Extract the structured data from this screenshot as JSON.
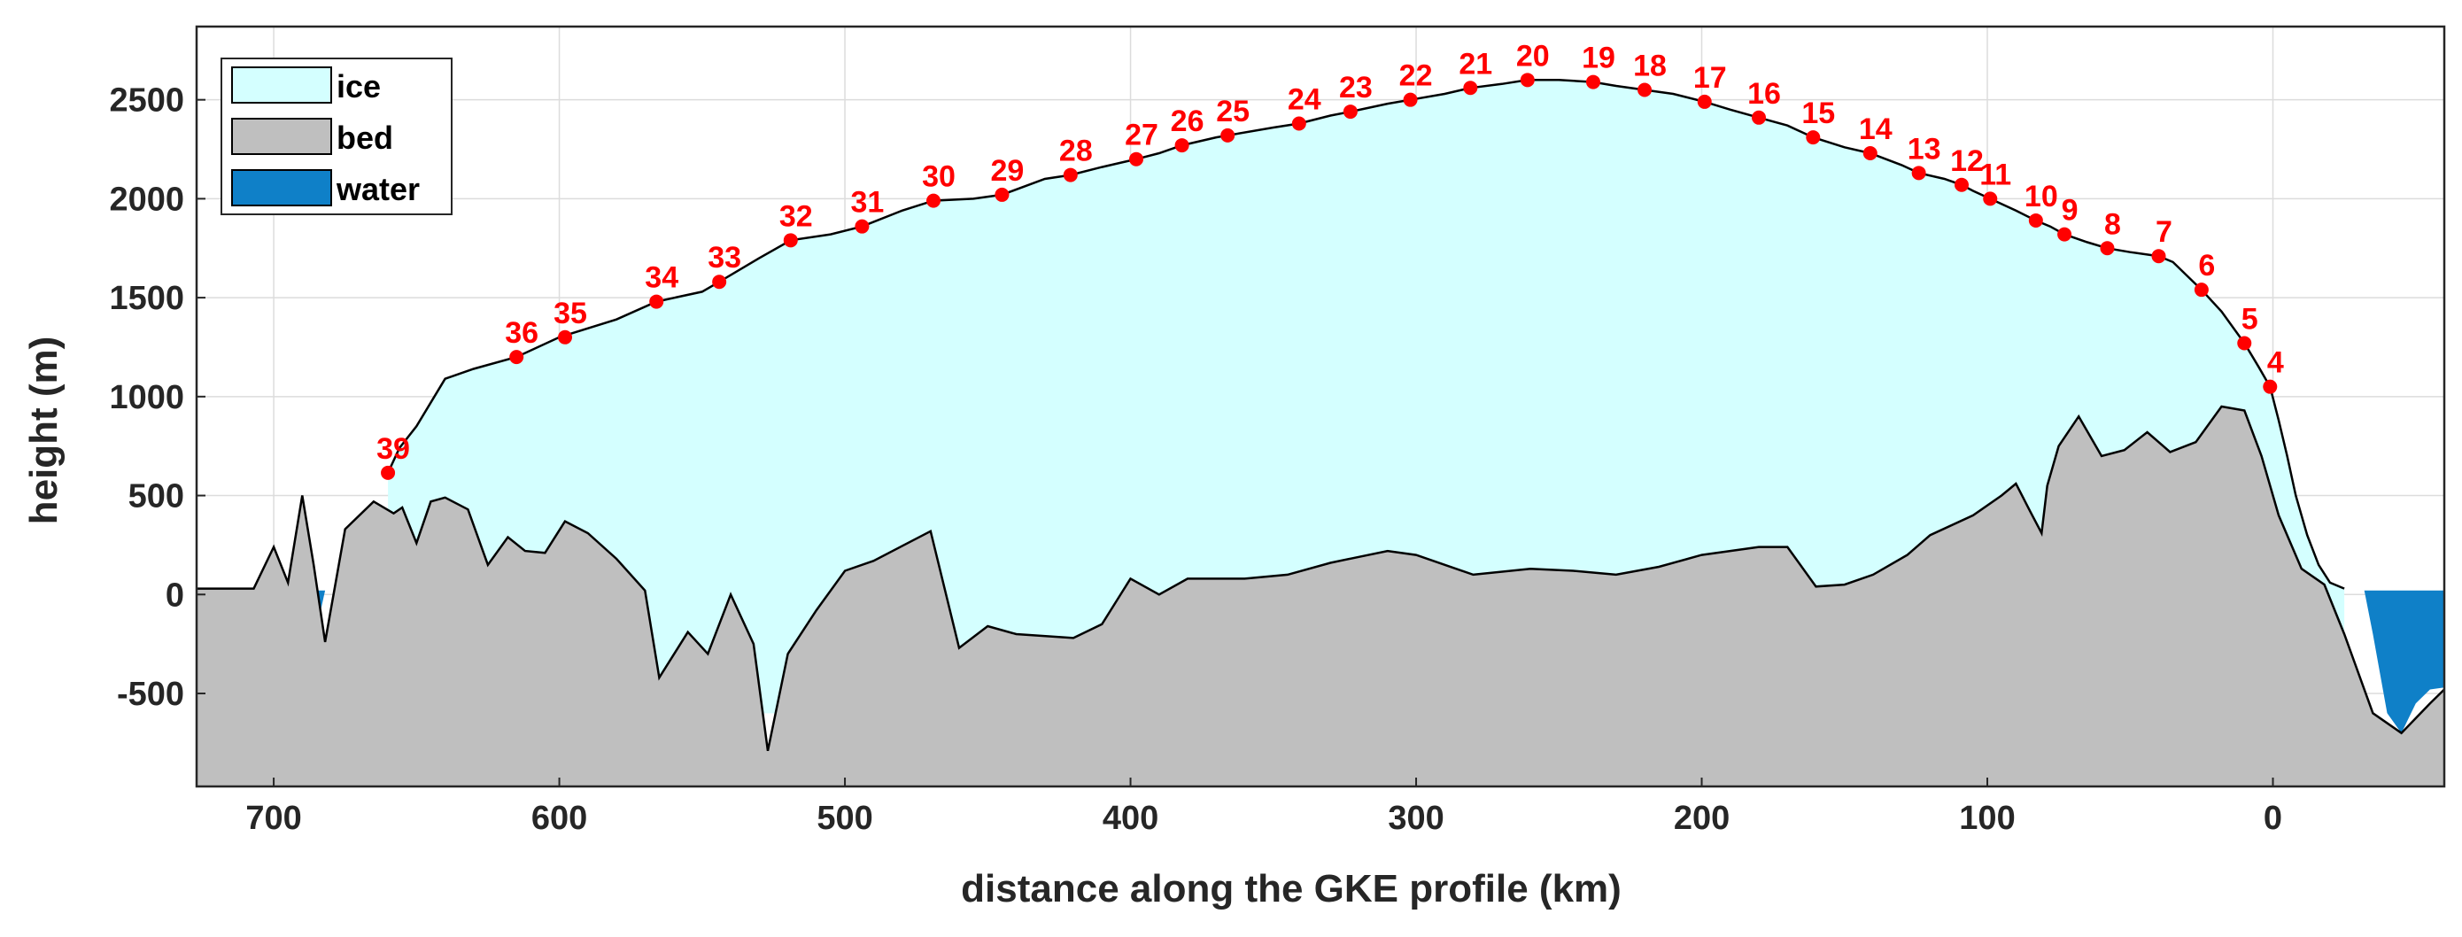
{
  "chart_data": {
    "type": "area",
    "title": "",
    "xlabel": "distance along the GKE profile (km)",
    "ylabel": "height (m)",
    "xlim": [
      727,
      -60
    ],
    "ylim": [
      -970,
      2870
    ],
    "x_reversed": true,
    "grid": true,
    "legend_position": "top-left",
    "xticks": [
      700,
      600,
      500,
      400,
      300,
      200,
      100,
      0
    ],
    "yticks": [
      -500,
      0,
      500,
      1000,
      1500,
      2000,
      2500
    ],
    "colors": {
      "ice": "#d4ffff",
      "bed": "#bfbfbf",
      "water": "#0f80c8",
      "marker": "#ff0000",
      "outline": "#000000"
    },
    "series": [
      {
        "name": "ice"
      },
      {
        "name": "bed"
      },
      {
        "name": "water"
      }
    ],
    "surface": {
      "x": [
        660,
        656,
        650,
        640,
        630,
        615,
        600,
        580,
        566,
        550,
        544,
        530,
        519,
        505,
        494,
        480,
        469,
        455,
        445,
        430,
        421,
        410,
        398,
        390,
        382,
        370,
        366,
        350,
        341,
        330,
        323,
        310,
        302,
        290,
        281,
        270,
        261,
        250,
        238,
        230,
        220,
        210,
        199,
        190,
        180,
        170,
        161,
        150,
        141,
        130,
        124,
        115,
        109,
        105,
        99,
        90,
        83,
        78,
        73,
        65,
        58,
        50,
        40,
        35,
        25,
        18,
        10,
        5,
        1,
        -2,
        -5,
        -8,
        -12,
        -16,
        -20,
        -25
      ],
      "y": [
        615,
        740,
        850,
        1090,
        1140,
        1200,
        1300,
        1390,
        1480,
        1530,
        1580,
        1700,
        1790,
        1820,
        1860,
        1940,
        1990,
        2000,
        2020,
        2100,
        2120,
        2160,
        2200,
        2230,
        2270,
        2310,
        2320,
        2360,
        2380,
        2420,
        2440,
        2480,
        2500,
        2530,
        2560,
        2580,
        2600,
        2600,
        2590,
        2570,
        2550,
        2530,
        2490,
        2450,
        2410,
        2370,
        2310,
        2260,
        2230,
        2170,
        2130,
        2100,
        2070,
        2040,
        2000,
        1940,
        1890,
        1860,
        1820,
        1780,
        1750,
        1730,
        1710,
        1680,
        1540,
        1430,
        1270,
        1150,
        1050,
        880,
        700,
        500,
        300,
        150,
        60,
        30
      ]
    },
    "bed": {
      "x": [
        727,
        715,
        707,
        700,
        695,
        690,
        686,
        682,
        675,
        665,
        658,
        655,
        650,
        645,
        640,
        632,
        625,
        618,
        612,
        605,
        598,
        590,
        580,
        570,
        565,
        555,
        548,
        540,
        532,
        527,
        520,
        510,
        500,
        490,
        470,
        460,
        450,
        440,
        420,
        410,
        400,
        390,
        380,
        370,
        360,
        345,
        330,
        320,
        310,
        300,
        280,
        260,
        245,
        230,
        215,
        200,
        190,
        180,
        170,
        160,
        150,
        140,
        128,
        120,
        105,
        95,
        90,
        85,
        81,
        79,
        75,
        68,
        60,
        52,
        44,
        36,
        27,
        18,
        10,
        4,
        -2,
        -10,
        -18,
        -25,
        -35,
        -45,
        -55,
        -60
      ],
      "y": [
        30,
        30,
        30,
        240,
        60,
        500,
        150,
        -240,
        330,
        470,
        410,
        440,
        260,
        470,
        490,
        430,
        150,
        290,
        220,
        210,
        370,
        310,
        180,
        20,
        -420,
        -190,
        -300,
        0,
        -250,
        -790,
        -300,
        -80,
        120,
        170,
        320,
        -270,
        -160,
        -200,
        -220,
        -150,
        80,
        0,
        80,
        80,
        80,
        100,
        160,
        190,
        220,
        200,
        100,
        130,
        120,
        100,
        140,
        200,
        220,
        240,
        240,
        40,
        50,
        100,
        200,
        300,
        400,
        500,
        560,
        420,
        310,
        550,
        750,
        900,
        700,
        730,
        820,
        720,
        770,
        950,
        930,
        700,
        400,
        130,
        50,
        -200,
        -600,
        -700,
        -550,
        -480
      ]
    },
    "water": {
      "x": [
        727,
        718,
        712,
        707,
        705,
        700,
        695,
        690,
        686,
        682,
        678,
        674,
        -32,
        -35,
        -40,
        -45,
        -50,
        -55,
        -60
      ],
      "y": [
        -590,
        -570,
        -480,
        -330,
        10,
        20,
        20,
        20,
        -240,
        20,
        20,
        20,
        20,
        -200,
        -600,
        -700,
        -550,
        -480,
        -470
      ]
    },
    "markers": [
      {
        "label": "4",
        "x": 1,
        "y": 1050
      },
      {
        "label": "5",
        "x": 10,
        "y": 1270
      },
      {
        "label": "6",
        "x": 25,
        "y": 1540
      },
      {
        "label": "7",
        "x": 40,
        "y": 1710
      },
      {
        "label": "8",
        "x": 58,
        "y": 1750
      },
      {
        "label": "9",
        "x": 73,
        "y": 1820
      },
      {
        "label": "10",
        "x": 83,
        "y": 1890
      },
      {
        "label": "11",
        "x": 99,
        "y": 2000
      },
      {
        "label": "12",
        "x": 109,
        "y": 2070
      },
      {
        "label": "13",
        "x": 124,
        "y": 2130
      },
      {
        "label": "14",
        "x": 141,
        "y": 2230
      },
      {
        "label": "15",
        "x": 161,
        "y": 2310
      },
      {
        "label": "16",
        "x": 180,
        "y": 2410
      },
      {
        "label": "17",
        "x": 199,
        "y": 2490
      },
      {
        "label": "18",
        "x": 220,
        "y": 2550
      },
      {
        "label": "19",
        "x": 238,
        "y": 2590
      },
      {
        "label": "20",
        "x": 261,
        "y": 2600
      },
      {
        "label": "21",
        "x": 281,
        "y": 2560
      },
      {
        "label": "22",
        "x": 302,
        "y": 2500
      },
      {
        "label": "23",
        "x": 323,
        "y": 2440
      },
      {
        "label": "24",
        "x": 341,
        "y": 2380
      },
      {
        "label": "25",
        "x": 366,
        "y": 2320
      },
      {
        "label": "26",
        "x": 382,
        "y": 2270
      },
      {
        "label": "27",
        "x": 398,
        "y": 2200
      },
      {
        "label": "28",
        "x": 421,
        "y": 2120
      },
      {
        "label": "29",
        "x": 445,
        "y": 2020
      },
      {
        "label": "30",
        "x": 469,
        "y": 1990
      },
      {
        "label": "31",
        "x": 494,
        "y": 1860
      },
      {
        "label": "32",
        "x": 519,
        "y": 1790
      },
      {
        "label": "33",
        "x": 544,
        "y": 1580
      },
      {
        "label": "34",
        "x": 566,
        "y": 1480
      },
      {
        "label": "35",
        "x": 598,
        "y": 1300
      },
      {
        "label": "36",
        "x": 615,
        "y": 1200
      },
      {
        "label": "39",
        "x": 660,
        "y": 615
      }
    ]
  }
}
